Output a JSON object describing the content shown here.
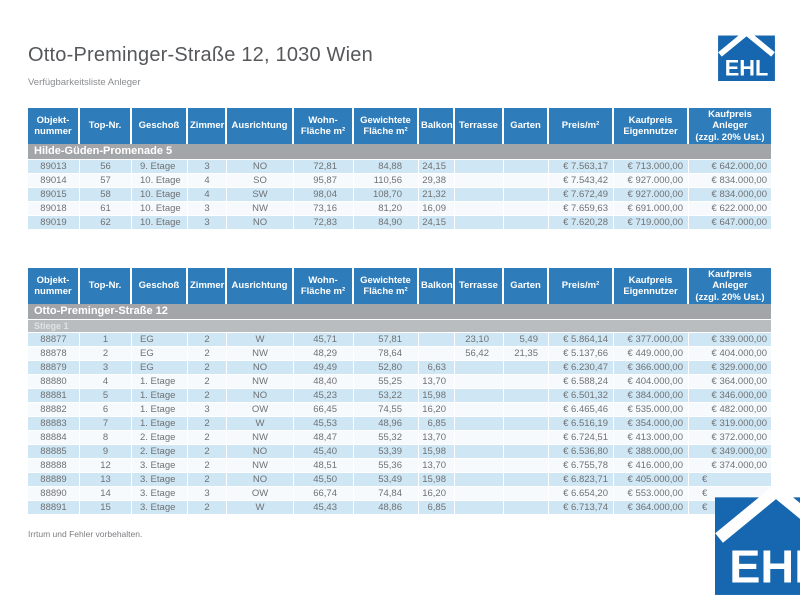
{
  "page": {
    "title": "Otto-Preminger-Straße 12, 1030 Wien",
    "subtitle": "Verfügbarkeitsliste Anleger",
    "footer": "Irrtum und Fehler vorbehalten.",
    "logo_text": "EHL"
  },
  "colors": {
    "header_blue": "#2e7cb9",
    "section_gray": "#a2a6a9",
    "subsection_gray": "#b9bdc0",
    "row_blue": "#cfe7f4",
    "row_white": "#f6fafd",
    "logo_blue": "#1667af"
  },
  "columns": [
    "Objekt-\nnummer",
    "Top-Nr.",
    "Geschoß",
    "Zimmer",
    "Ausrichtung",
    "Wohn-\nFläche m²",
    "Gewichtete\nFläche m²",
    "Balkon",
    "Terrasse",
    "Garten",
    "Preis/m²",
    "Kaufpreis\nEigennutzer",
    "Kaufpreis\nAnleger\n(zzgl. 20% Ust.)"
  ],
  "tables": [
    {
      "section": "Hilde-Güden-Promenade 5",
      "subsection": null,
      "rows": [
        [
          "89013",
          "56",
          "9. Etage",
          "3",
          "NO",
          "72,81",
          "84,88",
          "24,15",
          "",
          "",
          "€ 7.563,17",
          "€ 713.000,00",
          "€ 642.000,00"
        ],
        [
          "89014",
          "57",
          "10. Etage",
          "4",
          "SO",
          "95,87",
          "110,56",
          "29,38",
          "",
          "",
          "€ 7.543,42",
          "€ 927.000,00",
          "€ 834.000,00"
        ],
        [
          "89015",
          "58",
          "10. Etage",
          "4",
          "SW",
          "98,04",
          "108,70",
          "21,32",
          "",
          "",
          "€ 7.672,49",
          "€ 927.000,00",
          "€ 834.000,00"
        ],
        [
          "89018",
          "61",
          "10. Etage",
          "3",
          "NW",
          "73,16",
          "81,20",
          "16,09",
          "",
          "",
          "€ 7.659,63",
          "€ 691.000,00",
          "€ 622.000,00"
        ],
        [
          "89019",
          "62",
          "10. Etage",
          "3",
          "NO",
          "72,83",
          "84,90",
          "24,15",
          "",
          "",
          "€ 7.620,28",
          "€ 719.000,00",
          "€ 647.000,00"
        ]
      ]
    },
    {
      "section": "Otto-Preminger-Straße 12",
      "subsection": "Stiege 1",
      "rows": [
        [
          "88877",
          "1",
          "EG",
          "2",
          "W",
          "45,71",
          "57,81",
          "",
          "23,10",
          "5,49",
          "€ 5.864,14",
          "€ 377.000,00",
          "€ 339.000,00"
        ],
        [
          "88878",
          "2",
          "EG",
          "2",
          "NW",
          "48,29",
          "78,64",
          "",
          "56,42",
          "21,35",
          "€ 5.137,66",
          "€ 449.000,00",
          "€ 404.000,00"
        ],
        [
          "88879",
          "3",
          "EG",
          "2",
          "NO",
          "49,49",
          "52,80",
          "6,63",
          "",
          "",
          "€ 6.230,47",
          "€ 366.000,00",
          "€ 329.000,00"
        ],
        [
          "88880",
          "4",
          "1. Etage",
          "2",
          "NW",
          "48,40",
          "55,25",
          "13,70",
          "",
          "",
          "€ 6.588,24",
          "€ 404.000,00",
          "€ 364.000,00"
        ],
        [
          "88881",
          "5",
          "1. Etage",
          "2",
          "NO",
          "45,23",
          "53,22",
          "15,98",
          "",
          "",
          "€ 6.501,32",
          "€ 384.000,00",
          "€ 346.000,00"
        ],
        [
          "88882",
          "6",
          "1. Etage",
          "3",
          "OW",
          "66,45",
          "74,55",
          "16,20",
          "",
          "",
          "€ 6.465,46",
          "€ 535.000,00",
          "€ 482.000,00"
        ],
        [
          "88883",
          "7",
          "1. Etage",
          "2",
          "W",
          "45,53",
          "48,96",
          "6,85",
          "",
          "",
          "€ 6.516,19",
          "€ 354.000,00",
          "€ 319.000,00"
        ],
        [
          "88884",
          "8",
          "2. Etage",
          "2",
          "NW",
          "48,47",
          "55,32",
          "13,70",
          "",
          "",
          "€ 6.724,51",
          "€ 413.000,00",
          "€ 372.000,00"
        ],
        [
          "88885",
          "9",
          "2. Etage",
          "2",
          "NO",
          "45,40",
          "53,39",
          "15,98",
          "",
          "",
          "€ 6.536,80",
          "€ 388.000,00",
          "€ 349.000,00"
        ],
        [
          "88888",
          "12",
          "3. Etage",
          "2",
          "NW",
          "48,51",
          "55,36",
          "13,70",
          "",
          "",
          "€ 6.755,78",
          "€ 416.000,00",
          "€ 374.000,00"
        ],
        [
          "88889",
          "13",
          "3. Etage",
          "2",
          "NO",
          "45,50",
          "53,49",
          "15,98",
          "",
          "",
          "€ 6.823,71",
          "€ 405.000,00",
          "€"
        ],
        [
          "88890",
          "14",
          "3. Etage",
          "3",
          "OW",
          "66,74",
          "74,84",
          "16,20",
          "",
          "",
          "€ 6.654,20",
          "€ 553.000,00",
          "€"
        ],
        [
          "88891",
          "15",
          "3. Etage",
          "2",
          "W",
          "45,43",
          "48,86",
          "6,85",
          "",
          "",
          "€ 6.713,74",
          "€ 364.000,00",
          "€"
        ]
      ]
    }
  ]
}
